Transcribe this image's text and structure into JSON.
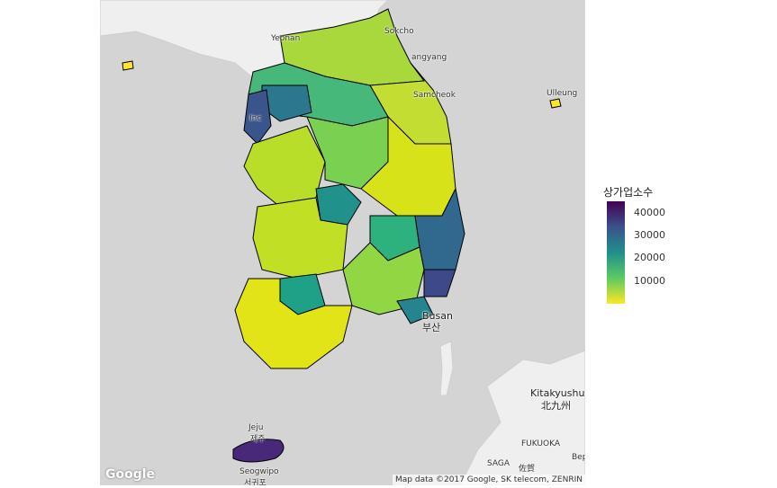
{
  "legend": {
    "title": "상가업소수",
    "labels": [
      "40000",
      "30000",
      "20000",
      "10000"
    ],
    "values": [
      40000,
      30000,
      20000,
      10000
    ],
    "min": 0,
    "max": 45000,
    "colors": [
      "#440154",
      "#3b528b",
      "#21908c",
      "#5dc963",
      "#fde725"
    ]
  },
  "places": {
    "yeonan": "Yeonan",
    "sokcho": "Sokcho",
    "gangneung_partial": "angyang",
    "samcheok": "Samcheok",
    "ulleung": "Ulleung",
    "incheon": "Inc",
    "busan": "Busan",
    "busan_ko": "부산",
    "kitakyushu": "Kitakyushu",
    "kitakyushu_ja": "北九州",
    "fukuoka": "FUKUOKA",
    "saga": "SAGA",
    "saga_ja": "佐賀",
    "beppu": "Bep",
    "jeju": "Jeju",
    "jeju_ko": "제주",
    "seogwipo": "Seogwipo",
    "seogwipo_ko": "서귀포"
  },
  "logo": "Google",
  "attribution": "Map data ©2017 Google, SK telecom, ZENRIN"
}
